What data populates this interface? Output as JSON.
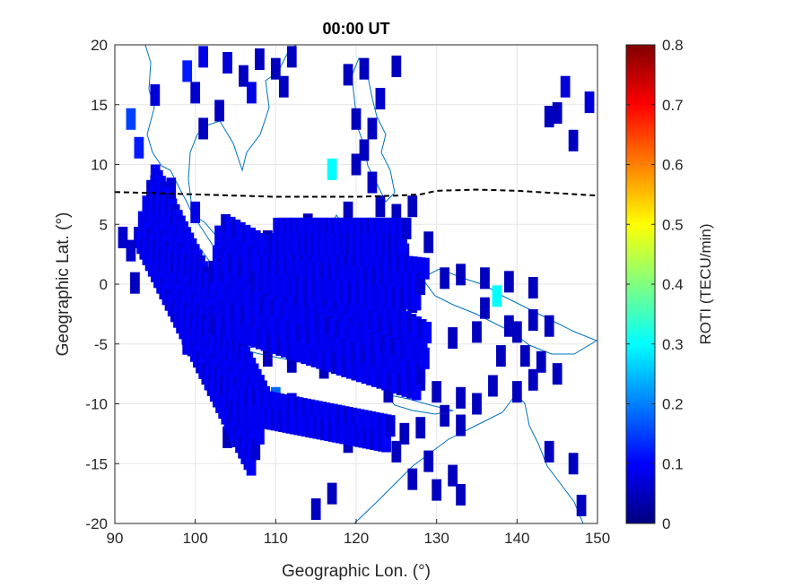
{
  "chart_data": {
    "type": "heatmap",
    "title": "00:00 UT",
    "xlabel": "Geographic Lon. (°)",
    "ylabel": "Geographic Lat. (°)",
    "xlim": [
      90,
      150
    ],
    "ylim": [
      -20,
      20
    ],
    "xticks": [
      "90",
      "100",
      "110",
      "120",
      "130",
      "140",
      "150"
    ],
    "yticks": [
      "20",
      "15",
      "10",
      "5",
      "0",
      "-5",
      "-10",
      "-15",
      "-20"
    ],
    "grid": true,
    "colorbar": {
      "label": "ROTI (TECU/min)",
      "range": [
        0,
        0.8
      ],
      "colormap": "jet",
      "ticks": [
        "0.8",
        "0.7",
        "0.6",
        "0.5",
        "0.4",
        "0.3",
        "0.2",
        "0.1",
        "0"
      ]
    },
    "magnetic_equator": {
      "style": "dashed",
      "color": "#000000",
      "points": [
        [
          90,
          7.7
        ],
        [
          95,
          7.6
        ],
        [
          100,
          7.5
        ],
        [
          105,
          7.4
        ],
        [
          110,
          7.3
        ],
        [
          115,
          7.3
        ],
        [
          120,
          7.3
        ],
        [
          125,
          7.4
        ],
        [
          128,
          7.5
        ],
        [
          130,
          7.8
        ],
        [
          135,
          7.9
        ],
        [
          140,
          7.8
        ],
        [
          145,
          7.6
        ],
        [
          150,
          7.4
        ]
      ]
    },
    "coastline_color": "#0072bd",
    "ionospheric_pierce_point_cells": [
      [
        92,
        13.8,
        0.15
      ],
      [
        93,
        11.4,
        0.12
      ],
      [
        95,
        15.8,
        0.07
      ],
      [
        99,
        17.8,
        0.12
      ],
      [
        101,
        19.0,
        0.08
      ],
      [
        104,
        18.5,
        0.07
      ],
      [
        100,
        16.0,
        0.06
      ],
      [
        103,
        14.5,
        0.05
      ],
      [
        101,
        13.0,
        0.05
      ],
      [
        106,
        17.4,
        0.05
      ],
      [
        108,
        18.8,
        0.05
      ],
      [
        107,
        16.0,
        0.08
      ],
      [
        110,
        18.0,
        0.05
      ],
      [
        112,
        19.0,
        0.05
      ],
      [
        111,
        16.5,
        0.05
      ],
      [
        119,
        17.5,
        0.05
      ],
      [
        120,
        13.8,
        0.05
      ],
      [
        123,
        15.5,
        0.06
      ],
      [
        125,
        18.2,
        0.05
      ],
      [
        121,
        18.0,
        0.05
      ],
      [
        121,
        11.2,
        0.05
      ],
      [
        122,
        13.0,
        0.05
      ],
      [
        117,
        9.6,
        0.3
      ],
      [
        120,
        10.0,
        0.05
      ],
      [
        122,
        8.5,
        0.06
      ],
      [
        146,
        16.5,
        0.07
      ],
      [
        149,
        15.2,
        0.07
      ],
      [
        144,
        14.0,
        0.05
      ],
      [
        145,
        14.3,
        0.05
      ],
      [
        147,
        12.0,
        0.05
      ],
      [
        91,
        3.9,
        0.06
      ],
      [
        92,
        2.8,
        0.06
      ],
      [
        92.5,
        0.1,
        0.05
      ],
      [
        95,
        8.2,
        0.07
      ],
      [
        97,
        8.0,
        0.07
      ],
      [
        95,
        6.0,
        0.25
      ],
      [
        106,
        2.0,
        0.07
      ],
      [
        109,
        3.6,
        0.05
      ],
      [
        111,
        4.2,
        0.05
      ],
      [
        114,
        5.0,
        0.05
      ],
      [
        117,
        4.1,
        0.05
      ],
      [
        119,
        6.0,
        0.05
      ],
      [
        123,
        6.5,
        0.05
      ],
      [
        125,
        5.8,
        0.05
      ],
      [
        127,
        6.5,
        0.05
      ],
      [
        129,
        3.5,
        0.05
      ],
      [
        131,
        0.5,
        0.05
      ],
      [
        133,
        0.8,
        0.05
      ],
      [
        136,
        0.5,
        0.05
      ],
      [
        137.5,
        -1.0,
        0.3
      ],
      [
        139,
        0.2,
        0.05
      ],
      [
        142,
        -0.3,
        0.05
      ],
      [
        136,
        -2.0,
        0.05
      ],
      [
        139,
        -3.5,
        0.05
      ],
      [
        142,
        -3.0,
        0.05
      ],
      [
        144,
        -3.5,
        0.05
      ],
      [
        140,
        -4.0,
        0.05
      ],
      [
        135,
        -4.0,
        0.05
      ],
      [
        132,
        -4.5,
        0.05
      ],
      [
        138,
        -6.0,
        0.05
      ],
      [
        141,
        -6.0,
        0.05
      ],
      [
        143,
        -6.5,
        0.05
      ],
      [
        145,
        -7.5,
        0.05
      ],
      [
        142,
        -8.0,
        0.05
      ],
      [
        140,
        -9.0,
        0.05
      ],
      [
        137,
        -8.5,
        0.05
      ],
      [
        133,
        -9.5,
        0.05
      ],
      [
        130,
        -9.0,
        0.05
      ],
      [
        131,
        -11.0,
        0.05
      ],
      [
        135,
        -10.0,
        0.05
      ],
      [
        133,
        -11.8,
        0.05
      ],
      [
        128,
        -12.0,
        0.05
      ],
      [
        129,
        -14.8,
        0.05
      ],
      [
        127,
        -16.3,
        0.05
      ],
      [
        130,
        -17.2,
        0.05
      ],
      [
        133,
        -17.6,
        0.05
      ],
      [
        132,
        -16.0,
        0.05
      ],
      [
        144,
        -14.0,
        0.05
      ],
      [
        147,
        -15.0,
        0.05
      ],
      [
        148,
        -18.5,
        0.05
      ],
      [
        106,
        -13.5,
        0.05
      ],
      [
        104,
        -12.8,
        0.05
      ],
      [
        117,
        -17.5,
        0.05
      ],
      [
        115,
        -18.8,
        0.05
      ],
      [
        119,
        -13.2,
        0.05
      ],
      [
        122,
        -12.5,
        0.05
      ],
      [
        126,
        -12.5,
        0.05
      ],
      [
        125,
        -14.0,
        0.05
      ],
      [
        101,
        -2.0,
        0.1
      ],
      [
        104,
        -4.0,
        0.1
      ],
      [
        106,
        -4.5,
        0.1
      ],
      [
        110,
        -9.5,
        0.18
      ],
      [
        114,
        -4.0,
        0.05
      ],
      [
        117,
        -5.0,
        0.05
      ],
      [
        120,
        -2.0,
        0.08
      ],
      [
        123,
        -4.0,
        0.05
      ],
      [
        126,
        -6.0,
        0.05
      ],
      [
        128,
        -8.0,
        0.05
      ],
      [
        100,
        6.0,
        0.08
      ],
      [
        103,
        4.0,
        0.08
      ],
      [
        105,
        -9.0,
        0.15
      ],
      [
        108,
        -11.0,
        0.07
      ],
      [
        112,
        -10.0,
        0.07
      ],
      [
        115,
        -11.0,
        0.07
      ],
      [
        118,
        -12.0,
        0.07
      ],
      [
        121,
        -12.0,
        0.07
      ],
      [
        124,
        -9.0,
        0.05
      ],
      [
        122,
        -7.5,
        0.05
      ],
      [
        119,
        -6.5,
        0.05
      ],
      [
        116,
        -7.0,
        0.05
      ],
      [
        112,
        -6.5,
        0.05
      ],
      [
        109,
        -6.0,
        0.05
      ],
      [
        106,
        -7.5,
        0.08
      ],
      [
        103,
        -6.0,
        0.08
      ],
      [
        100,
        -3.0,
        0.08
      ],
      [
        97,
        0.5,
        0.08
      ],
      [
        96,
        2.0,
        0.1
      ],
      [
        98,
        4.0,
        0.08
      ],
      [
        112,
        0.5,
        0.08
      ],
      [
        115,
        2.5,
        0.05
      ],
      [
        118,
        1.0,
        0.05
      ],
      [
        121,
        0.0,
        0.05
      ],
      [
        124,
        1.0,
        0.05
      ],
      [
        126,
        2.5,
        0.05
      ],
      [
        128,
        0.5,
        0.05
      ],
      [
        127,
        -1.5,
        0.05
      ],
      [
        124,
        -2.5,
        0.05
      ],
      [
        116,
        -1.0,
        0.06
      ],
      [
        109,
        -1.0,
        0.07
      ],
      [
        107,
        0.0,
        0.07
      ],
      [
        103,
        1.0,
        0.08
      ],
      [
        99,
        -5.0,
        0.08
      ],
      [
        102,
        -8.0,
        0.08
      ],
      [
        108,
        -8.5,
        0.1
      ],
      [
        113,
        -11.5,
        0.06
      ],
      [
        117,
        -12.0,
        0.06
      ]
    ]
  }
}
